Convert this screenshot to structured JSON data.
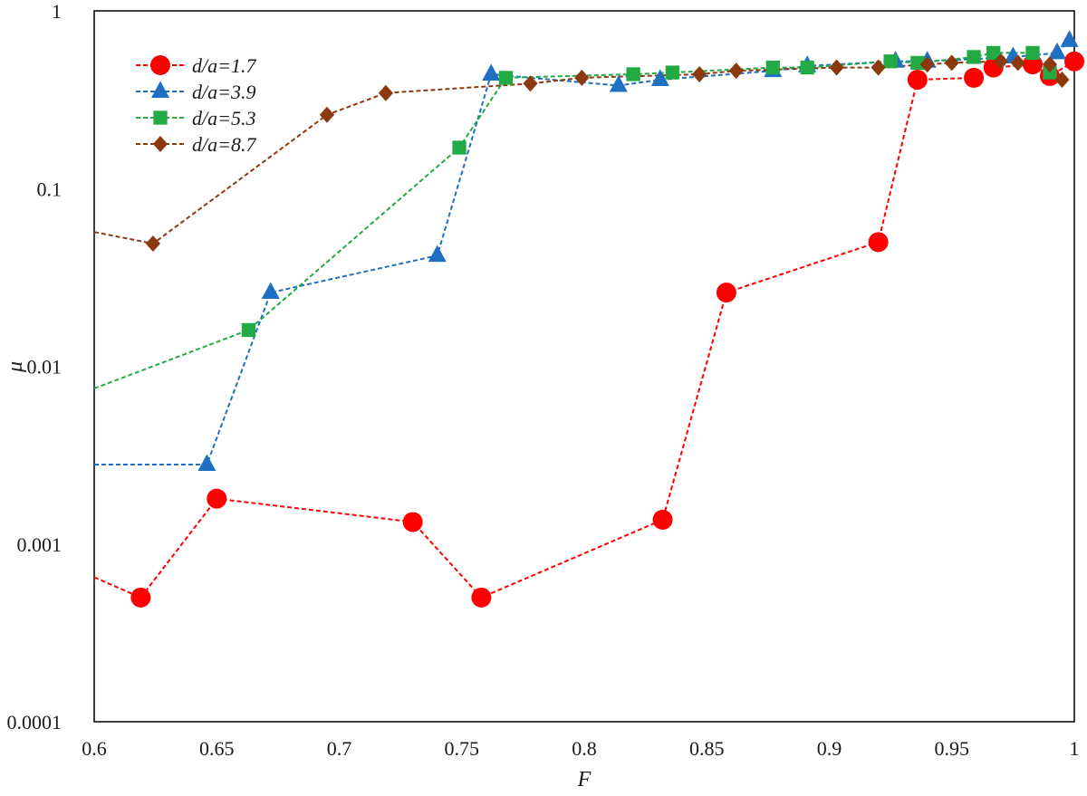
{
  "chart_data": {
    "type": "line",
    "title": "",
    "xlabel": "F",
    "ylabel": "μ",
    "xscale": "linear",
    "yscale": "log",
    "xlim": [
      0.6,
      1.0
    ],
    "ylim": [
      0.0001,
      1
    ],
    "xticks": [
      0.6,
      0.65,
      0.7,
      0.75,
      0.8,
      0.85,
      0.9,
      0.95,
      1.0
    ],
    "xtick_labels": [
      "0.6",
      "0.65",
      "0.7",
      "0.75",
      "0.8",
      "0.85",
      "0.9",
      "0.95",
      "1"
    ],
    "yticks": [
      0.0001,
      0.001,
      0.01,
      0.1,
      1
    ],
    "ytick_labels": [
      "0.0001",
      "0.001",
      "0.01",
      "0.1",
      "1"
    ],
    "grid": false,
    "legend_position": "top-left",
    "series": [
      {
        "name": "d/a=1.7",
        "color": "#ff0000",
        "marker": "circle",
        "line_style": "dashed",
        "x": [
          0.6,
          0.619,
          0.65,
          0.73,
          0.758,
          0.832,
          0.858,
          0.92,
          0.936,
          0.959,
          0.967,
          0.983,
          0.99,
          1.0
        ],
        "y": [
          0.00065,
          0.0005,
          0.0018,
          0.00133,
          0.0005,
          0.00137,
          0.026,
          0.05,
          0.41,
          0.42,
          0.48,
          0.5,
          0.43,
          0.52
        ]
      },
      {
        "name": "d/a=3.9",
        "color": "#1f6fc2",
        "marker": "triangle",
        "line_style": "dashed",
        "x": [
          0.6,
          0.646,
          0.672,
          0.74,
          0.762,
          0.814,
          0.831,
          0.877,
          0.891,
          0.927,
          0.94,
          0.975,
          0.993,
          0.998
        ],
        "y": [
          0.0028,
          0.0028,
          0.026,
          0.042,
          0.44,
          0.38,
          0.41,
          0.46,
          0.49,
          0.52,
          0.52,
          0.55,
          0.58,
          0.68
        ]
      },
      {
        "name": "d/a=5.3",
        "color": "#22aa44",
        "marker": "square",
        "line_style": "dashed",
        "x": [
          0.6,
          0.663,
          0.749,
          0.768,
          0.82,
          0.836,
          0.877,
          0.891,
          0.925,
          0.936,
          0.959,
          0.967,
          0.983,
          0.99
        ],
        "y": [
          0.0075,
          0.016,
          0.17,
          0.42,
          0.44,
          0.45,
          0.48,
          0.48,
          0.52,
          0.51,
          0.55,
          0.58,
          0.58,
          0.45
        ]
      },
      {
        "name": "d/a=8.7",
        "color": "#8b3a10",
        "marker": "diamond",
        "line_style": "dashed",
        "x": [
          0.6,
          0.624,
          0.695,
          0.719,
          0.778,
          0.799,
          0.847,
          0.862,
          0.903,
          0.92,
          0.94,
          0.95,
          0.97,
          0.977,
          0.99,
          0.995
        ],
        "y": [
          0.057,
          0.049,
          0.26,
          0.345,
          0.39,
          0.42,
          0.44,
          0.46,
          0.48,
          0.48,
          0.5,
          0.51,
          0.52,
          0.51,
          0.5,
          0.41
        ]
      }
    ]
  }
}
